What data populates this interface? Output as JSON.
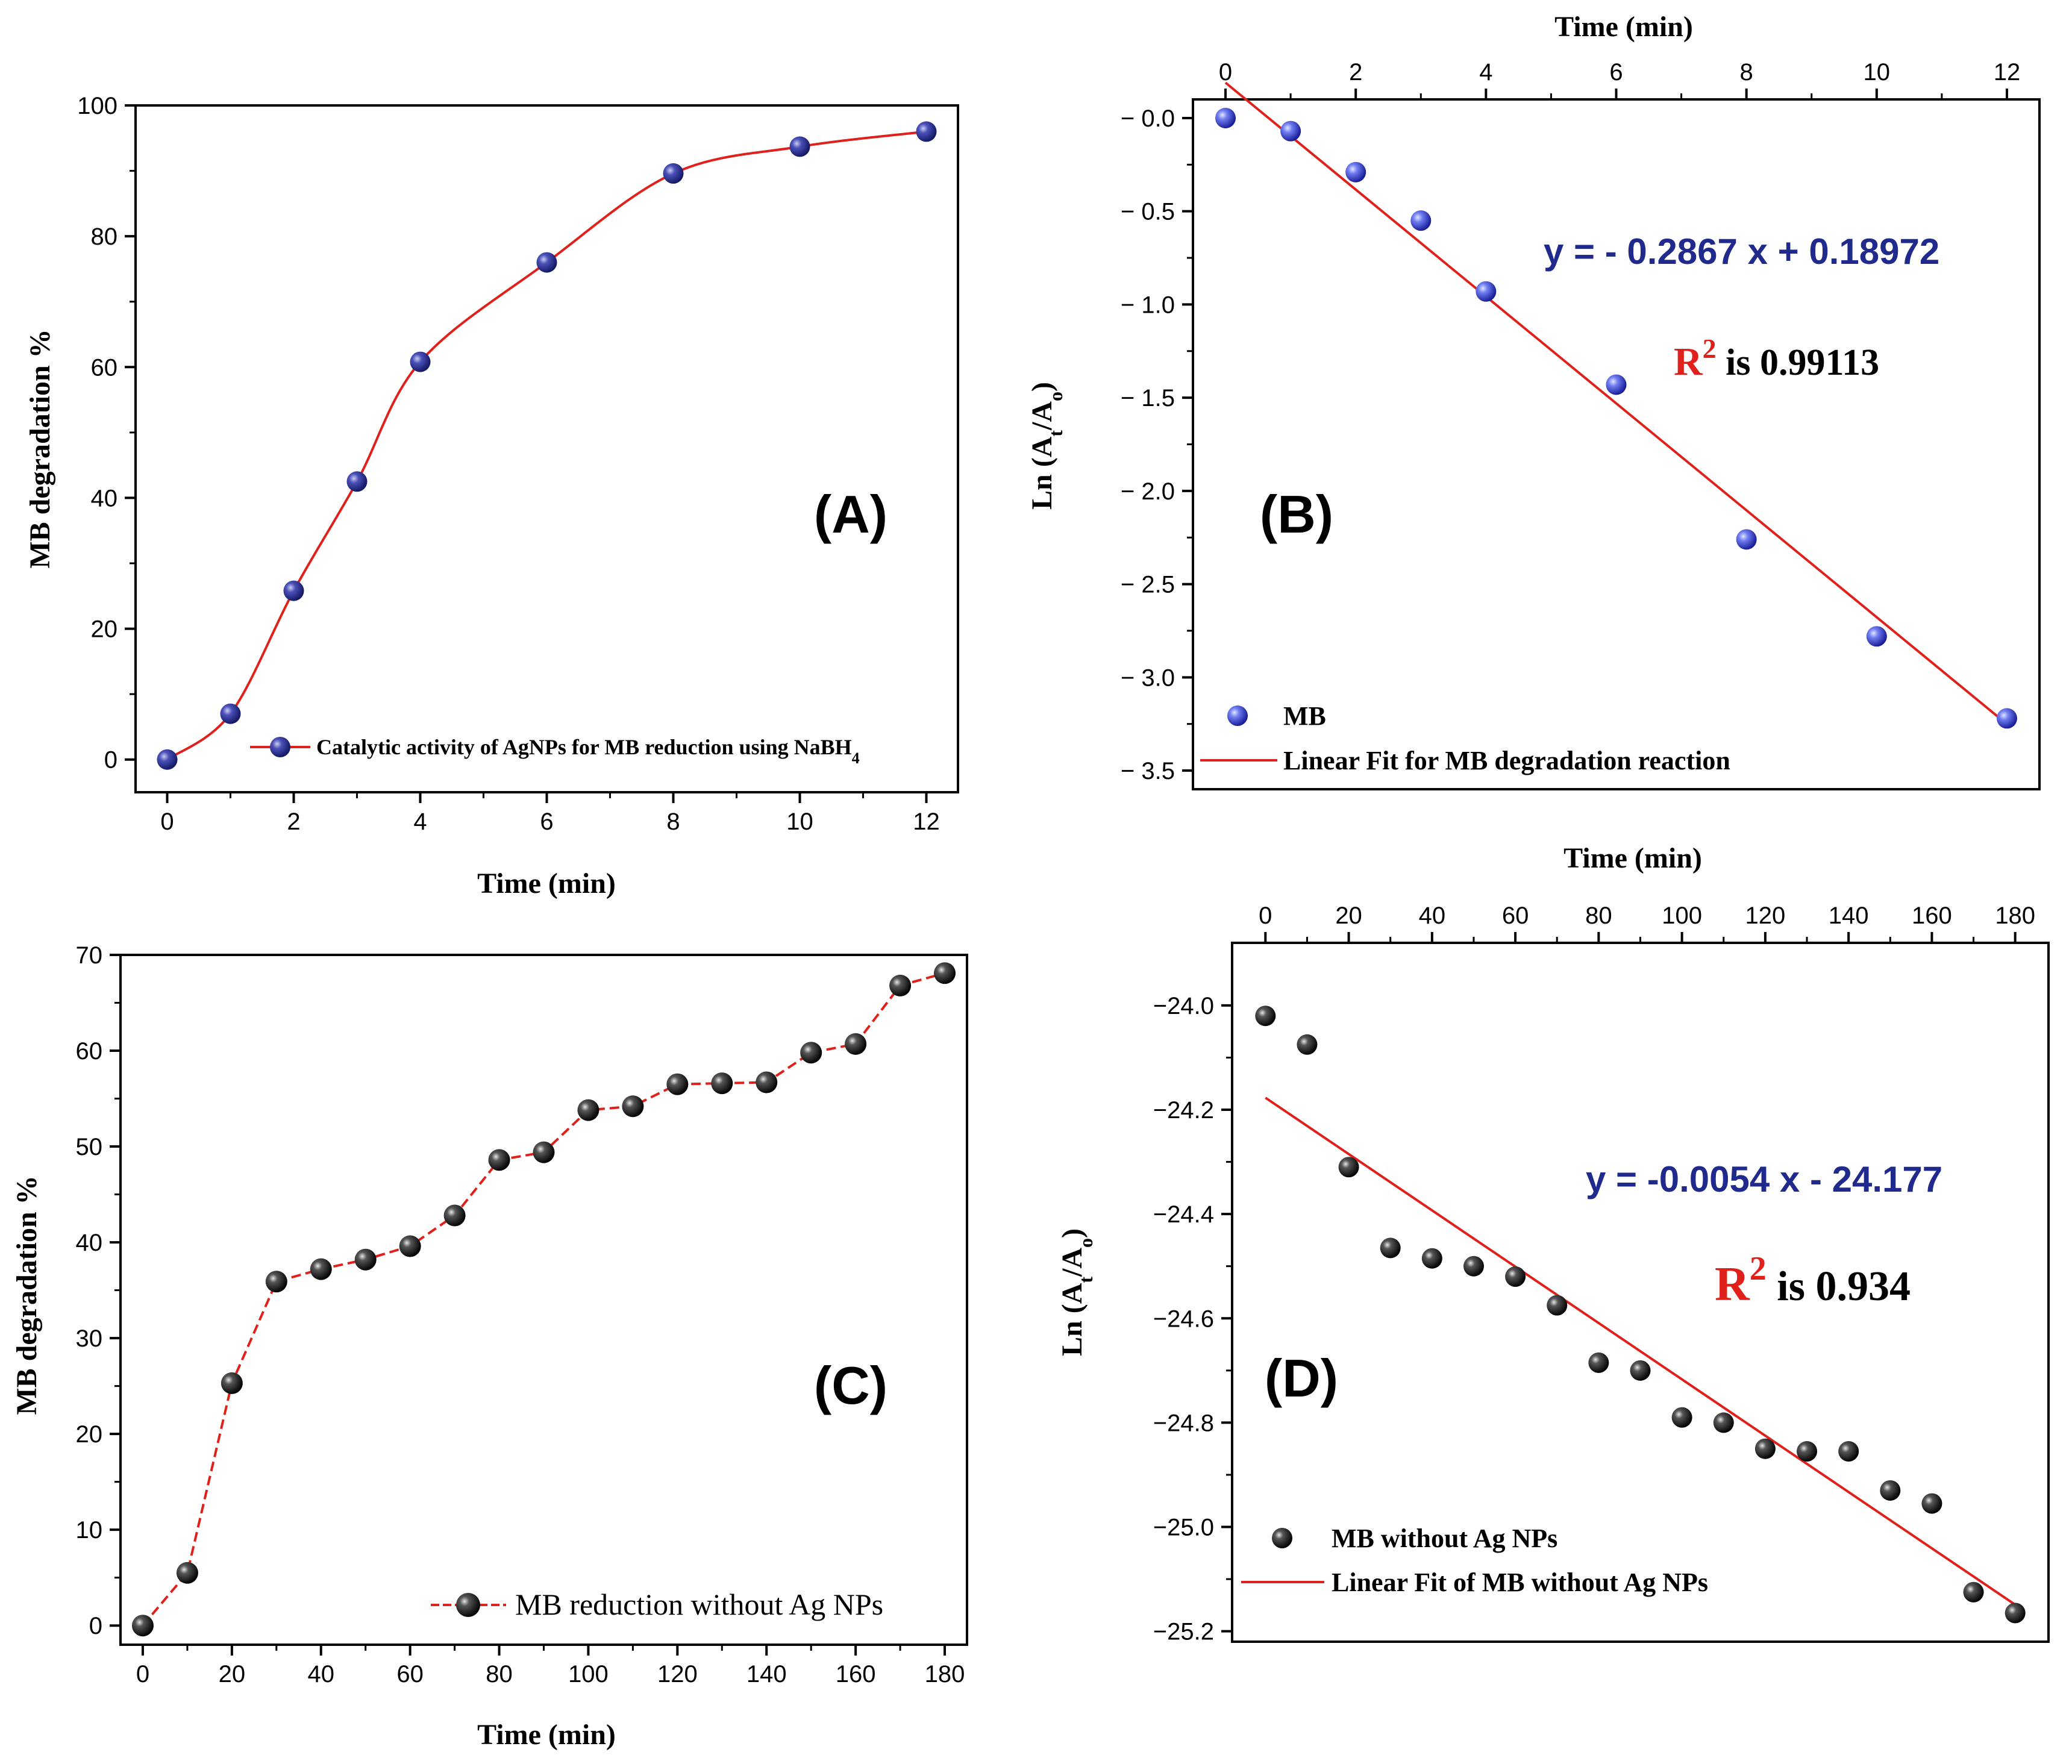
{
  "chart_data": [
    {
      "id": "A",
      "type": "scatter",
      "panel_label": "(A)",
      "xlabel": "Time (min)",
      "ylabel": "MB degradation %",
      "xlim": [
        -0.5,
        12.5
      ],
      "ylim": [
        -5,
        100
      ],
      "x_ticks": [
        0,
        2,
        4,
        6,
        8,
        10,
        12
      ],
      "y_ticks": [
        0,
        20,
        40,
        60,
        80,
        100
      ],
      "x_axis_position": "bottom",
      "series": [
        {
          "name": "Catalytic activity of AgNPs for MB reduction using NaBH",
          "name_subscript": "4",
          "x": [
            0,
            1,
            2,
            3,
            4,
            6,
            8,
            10,
            12
          ],
          "y": [
            0,
            7,
            25.8,
            42.5,
            60.8,
            76,
            89.6,
            93.7,
            96
          ],
          "marker_color": "#2a2f9c",
          "line_color": "#e0201b",
          "line_style": "solid-smooth"
        }
      ],
      "legend_position": "bottom-right"
    },
    {
      "id": "B",
      "type": "scatter",
      "panel_label": "(B)",
      "xlabel": "Time (min)",
      "ylabel_main": "Ln (A",
      "ylabel_sub1": "t",
      "ylabel_mid": "/A",
      "ylabel_sub2": "o",
      "ylabel_end": ")",
      "xlim": [
        -0.5,
        12.5
      ],
      "ylim": [
        -3.6,
        0.1
      ],
      "x_ticks": [
        0,
        2,
        4,
        6,
        8,
        10,
        12
      ],
      "y_ticks": [
        0.0,
        -0.5,
        -1.0,
        -1.5,
        -2.0,
        -2.5,
        -3.0,
        -3.5
      ],
      "y_tick_labels": [
        "− 0.0",
        "− 0.5",
        "− 1.0",
        "− 1.5",
        "− 2.0",
        "− 2.5",
        "− 3.0",
        "− 3.5"
      ],
      "y_values_plotted_as": "negative",
      "x_axis_position": "top",
      "series": [
        {
          "name": "MB",
          "x": [
            0,
            1,
            2,
            3,
            4,
            6,
            8,
            10,
            12
          ],
          "y": [
            0.0,
            -0.07,
            -0.29,
            -0.55,
            -0.93,
            -1.43,
            -2.26,
            -2.78,
            -3.22
          ],
          "marker_color": "#1f25e6"
        },
        {
          "name": "Linear Fit for MB degradation reaction",
          "type": "line",
          "x": [
            0,
            12
          ],
          "y": [
            0.18972,
            -3.25068
          ],
          "line_color": "#e0201b"
        }
      ],
      "equation": "y = - 0.2867 x + 0.18972",
      "r2_symbol": "R",
      "r2_power": "2",
      "r2_text": " is 0.99113",
      "legend_position": "bottom-left"
    },
    {
      "id": "C",
      "type": "line",
      "panel_label": "(C)",
      "xlabel": "Time (min)",
      "ylabel": "MB degradation %",
      "xlim": [
        -5,
        185
      ],
      "ylim": [
        -2,
        70
      ],
      "x_ticks": [
        0,
        20,
        40,
        60,
        80,
        100,
        120,
        140,
        160,
        180
      ],
      "y_ticks": [
        0,
        10,
        20,
        30,
        40,
        50,
        60,
        70
      ],
      "x_axis_position": "bottom",
      "series": [
        {
          "name": "MB reduction without Ag NPs",
          "x": [
            0,
            10,
            20,
            30,
            40,
            50,
            60,
            70,
            80,
            90,
            100,
            110,
            120,
            130,
            140,
            150,
            160,
            170,
            180
          ],
          "y": [
            0,
            5.5,
            25.3,
            35.9,
            37.2,
            38.2,
            39.6,
            42.8,
            48.6,
            49.4,
            53.8,
            54.2,
            56.5,
            56.6,
            56.7,
            59.8,
            60.7,
            66.8,
            68.1
          ],
          "marker_color": "#111111",
          "line_color": "#e0201b",
          "line_style": "dashed"
        }
      ],
      "legend_position": "bottom-right"
    },
    {
      "id": "D",
      "type": "scatter",
      "panel_label": "(D)",
      "xlabel": "Time (min)",
      "ylabel_main": "Ln (A",
      "ylabel_sub1": "t",
      "ylabel_mid": "/A",
      "ylabel_sub2": "o",
      "ylabel_end": ")",
      "xlim": [
        -8,
        188
      ],
      "ylim": [
        -25.22,
        -23.88
      ],
      "x_ticks": [
        0,
        20,
        40,
        60,
        80,
        100,
        120,
        140,
        160,
        180
      ],
      "y_ticks": [
        -24.0,
        -24.2,
        -24.4,
        -24.6,
        -24.8,
        -25.0,
        -25.2
      ],
      "y_tick_labels": [
        "−24.0",
        "−24.2",
        "−24.4",
        "−24.6",
        "−24.8",
        "−25.0",
        "−25.2"
      ],
      "x_axis_position": "top",
      "series": [
        {
          "name": "MB without Ag NPs",
          "x": [
            0,
            10,
            20,
            30,
            40,
            50,
            60,
            70,
            80,
            90,
            100,
            110,
            120,
            130,
            140,
            150,
            160,
            170,
            180
          ],
          "y": [
            -24.02,
            -24.075,
            -24.31,
            -24.465,
            -24.485,
            -24.5,
            -24.52,
            -24.575,
            -24.685,
            -24.7,
            -24.79,
            -24.8,
            -24.85,
            -24.855,
            -24.855,
            -24.93,
            -24.955,
            -25.125,
            -25.165
          ],
          "marker_color": "#111111"
        },
        {
          "name": "Linear Fit of MB without Ag NPs",
          "type": "line",
          "x": [
            0,
            180
          ],
          "y": [
            -24.177,
            -25.149
          ],
          "line_color": "#e0201b"
        }
      ],
      "equation": "y = -0.0054 x - 24.177",
      "r2_symbol": "R",
      "r2_power": "2",
      "r2_text": " is 0.934",
      "legend_position": "bottom-left"
    }
  ]
}
